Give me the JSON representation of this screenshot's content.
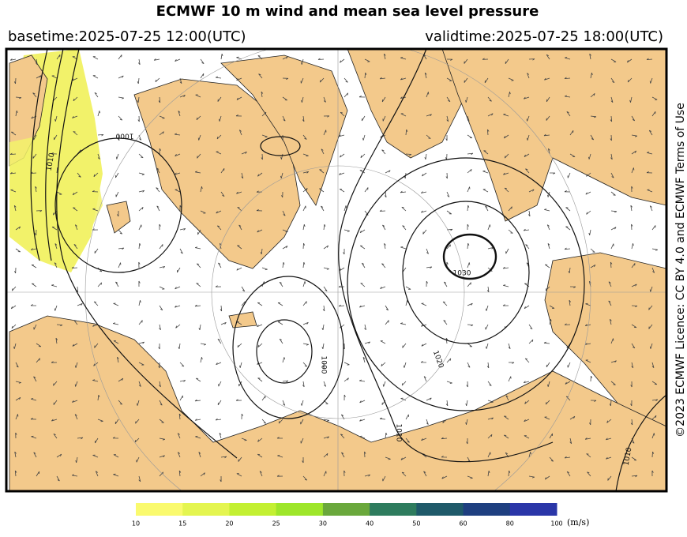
{
  "header": {
    "title": "ECMWF 10 m wind and mean sea level pressure",
    "basetime": "basetime:2025-07-25 12:00(UTC)",
    "validtime": "validtime:2025-07-25 18:00(UTC)"
  },
  "license": "©2023 ECMWF Licence: CC BY 4.0 and ECMWF Terms of Use",
  "map": {
    "contour_labels": [
      "1000",
      "1010",
      "1030",
      "1020",
      "1000",
      "1010",
      "1010"
    ]
  },
  "colorbar": {
    "ticks": [
      10,
      15,
      20,
      25,
      30,
      40,
      50,
      60,
      80,
      100
    ],
    "colors": [
      "#fafa6e",
      "#e4f550",
      "#c3f032",
      "#9ee62a",
      "#6aa83c",
      "#2e7c5e",
      "#1f5a6a",
      "#1e3f80",
      "#2a36a8"
    ],
    "unit": "(m/s)"
  }
}
